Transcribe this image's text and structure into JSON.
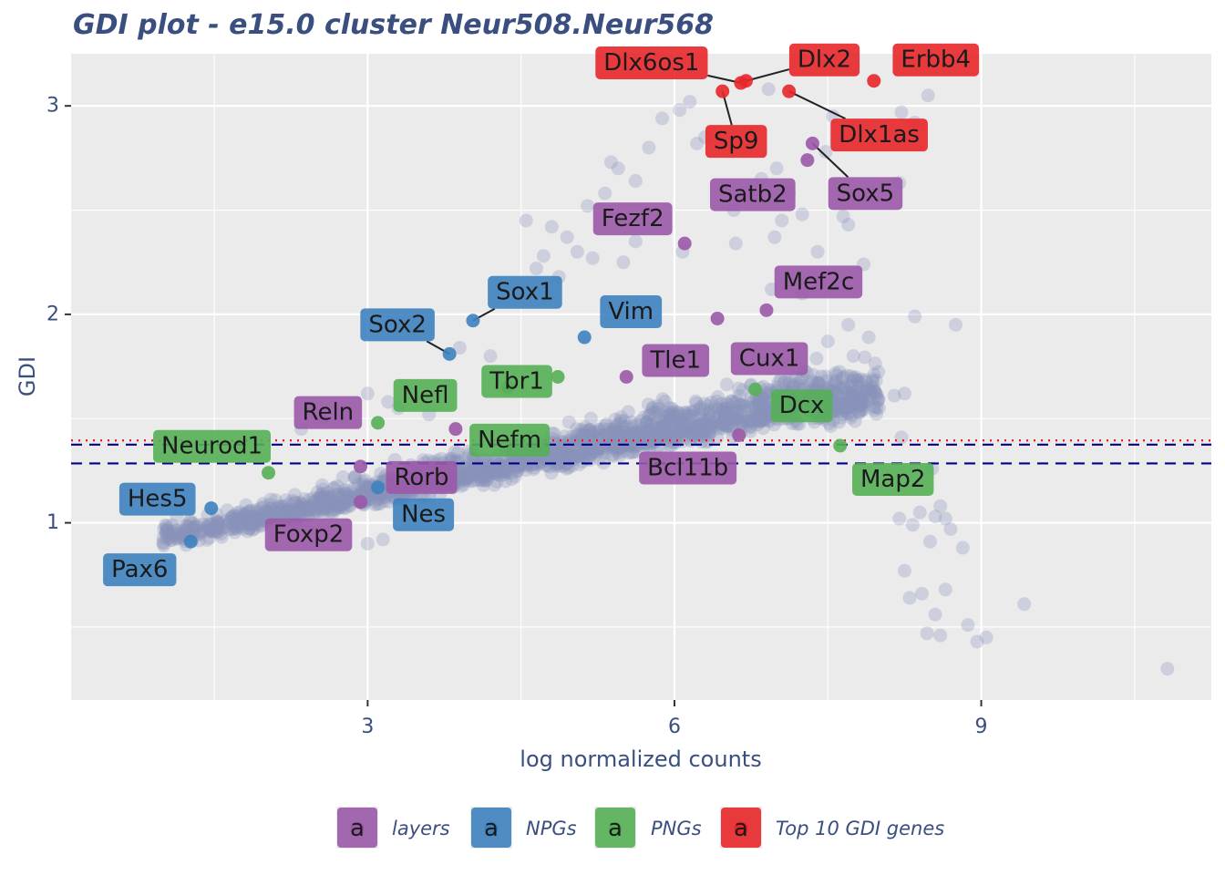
{
  "chart_data": {
    "type": "scatter",
    "title": "GDI plot - e15.0 cluster Neur508.Neur568",
    "xlabel": "log normalized counts",
    "ylabel": "GDI",
    "xlim": [
      0.1,
      11.25
    ],
    "ylim": [
      0.15,
      3.25
    ],
    "x_ticks": [
      3,
      6,
      9
    ],
    "y_ticks": [
      1,
      2,
      3
    ],
    "x_tick_labels": [
      "3",
      "6",
      "9"
    ],
    "y_tick_labels": [
      "1",
      "2",
      "3"
    ],
    "grid": true,
    "reference_lines": [
      {
        "y": 1.395,
        "style": "dotted",
        "color": "#e8151d"
      },
      {
        "y": 1.375,
        "style": "dashed",
        "color": "#00008b"
      },
      {
        "y": 1.285,
        "style": "dashed",
        "color": "#00008b"
      }
    ],
    "background_points_color": "#8793b8",
    "background_points_description": "dense cloud of all genes rising from about GDI 0.9 at x 1 to about 1.6 at x 7, with sparse outliers up to GDI 3.1 and a tail falling to 0.3 beyond x 8",
    "legend": {
      "position": "bottom",
      "key_glyph": "a",
      "entries": [
        {
          "name": "layers",
          "color": "#9b59a8"
        },
        {
          "name": "NPGs",
          "color": "#3e82bf"
        },
        {
          "name": "PNGs",
          "color": "#55b056"
        },
        {
          "name": "Top 10 GDI genes",
          "color": "#e8262a"
        }
      ]
    },
    "highlighted_genes": [
      {
        "gene": "Dlx6os1",
        "x": 6.65,
        "y": 3.11,
        "group": "Top 10 GDI genes"
      },
      {
        "gene": "Dlx2",
        "x": 6.7,
        "y": 3.12,
        "group": "Top 10 GDI genes"
      },
      {
        "gene": "Erbb4",
        "x": 7.95,
        "y": 3.12,
        "group": "Top 10 GDI genes"
      },
      {
        "gene": "Sp9",
        "x": 6.47,
        "y": 3.07,
        "group": "Top 10 GDI genes"
      },
      {
        "gene": "Dlx1as",
        "x": 7.12,
        "y": 3.07,
        "group": "Top 10 GDI genes"
      },
      {
        "gene": "Satb2",
        "x": 7.3,
        "y": 2.74,
        "group": "layers"
      },
      {
        "gene": "Sox5",
        "x": 7.35,
        "y": 2.82,
        "group": "layers"
      },
      {
        "gene": "Fezf2",
        "x": 6.1,
        "y": 2.34,
        "group": "layers"
      },
      {
        "gene": "Mef2c",
        "x": 6.9,
        "y": 2.02,
        "group": "layers"
      },
      {
        "gene": "Cux1",
        "x": 6.42,
        "y": 1.98,
        "group": "layers"
      },
      {
        "gene": "Tle1",
        "x": 5.53,
        "y": 1.7,
        "group": "layers"
      },
      {
        "gene": "Bcl11b",
        "x": 6.63,
        "y": 1.42,
        "group": "layers"
      },
      {
        "gene": "Reln",
        "x": 3.86,
        "y": 1.45,
        "group": "layers"
      },
      {
        "gene": "Rorb",
        "x": 2.93,
        "y": 1.27,
        "group": "layers"
      },
      {
        "gene": "Foxp2",
        "x": 2.93,
        "y": 1.1,
        "group": "layers"
      },
      {
        "gene": "Sox1",
        "x": 4.03,
        "y": 1.97,
        "group": "NPGs"
      },
      {
        "gene": "Sox2",
        "x": 3.8,
        "y": 1.81,
        "group": "NPGs"
      },
      {
        "gene": "Vim",
        "x": 5.12,
        "y": 1.89,
        "group": "NPGs"
      },
      {
        "gene": "Nes",
        "x": 3.1,
        "y": 1.17,
        "group": "NPGs"
      },
      {
        "gene": "Hes5",
        "x": 1.47,
        "y": 1.07,
        "group": "NPGs"
      },
      {
        "gene": "Pax6",
        "x": 1.27,
        "y": 0.91,
        "group": "NPGs"
      },
      {
        "gene": "Tbr1",
        "x": 4.86,
        "y": 1.7,
        "group": "PNGs"
      },
      {
        "gene": "Nefl",
        "x": 3.1,
        "y": 1.48,
        "group": "PNGs"
      },
      {
        "gene": "Nefm",
        "x": 4.37,
        "y": 1.65,
        "group": "PNGs"
      },
      {
        "gene": "Dcx",
        "x": 6.79,
        "y": 1.64,
        "group": "PNGs"
      },
      {
        "gene": "Neurod1",
        "x": 2.03,
        "y": 1.24,
        "group": "PNGs"
      },
      {
        "gene": "Map2",
        "x": 7.62,
        "y": 1.37,
        "group": "PNGs"
      }
    ],
    "sparse_outliers": [
      [
        6.05,
        2.98
      ],
      [
        6.15,
        3.02
      ],
      [
        5.88,
        2.94
      ],
      [
        6.3,
        2.85
      ],
      [
        6.92,
        3.08
      ],
      [
        7.55,
        2.95
      ],
      [
        8.22,
        2.97
      ],
      [
        8.48,
        3.05
      ],
      [
        8.35,
        2.92
      ],
      [
        7.48,
        2.78
      ],
      [
        6.22,
        2.82
      ],
      [
        5.75,
        2.8
      ],
      [
        5.45,
        2.7
      ],
      [
        5.38,
        2.73
      ],
      [
        5.62,
        2.64
      ],
      [
        5.15,
        2.52
      ],
      [
        5.32,
        2.58
      ],
      [
        6.85,
        2.65
      ],
      [
        7.0,
        2.7
      ],
      [
        7.12,
        2.58
      ],
      [
        8.2,
        2.63
      ],
      [
        7.65,
        2.47
      ],
      [
        7.7,
        2.43
      ],
      [
        6.58,
        2.5
      ],
      [
        7.25,
        2.48
      ],
      [
        4.55,
        2.45
      ],
      [
        4.8,
        2.42
      ],
      [
        4.95,
        2.37
      ],
      [
        5.05,
        2.3
      ],
      [
        4.72,
        2.28
      ],
      [
        4.65,
        2.22
      ],
      [
        4.87,
        2.18
      ],
      [
        5.2,
        2.27
      ],
      [
        5.5,
        2.25
      ],
      [
        5.62,
        2.35
      ],
      [
        6.08,
        2.3
      ],
      [
        6.6,
        2.34
      ],
      [
        6.98,
        2.37
      ],
      [
        7.05,
        2.45
      ],
      [
        7.4,
        2.3
      ],
      [
        7.85,
        2.24
      ],
      [
        6.95,
        2.12
      ],
      [
        7.25,
        2.1
      ],
      [
        8.35,
        1.99
      ],
      [
        8.75,
        1.95
      ],
      [
        7.7,
        1.95
      ],
      [
        7.9,
        1.89
      ],
      [
        7.5,
        1.87
      ],
      [
        7.75,
        1.8
      ],
      [
        8.15,
        1.61
      ],
      [
        8.25,
        1.62
      ],
      [
        8.0,
        1.55
      ],
      [
        8.22,
        1.41
      ],
      [
        8.52,
        1.26
      ],
      [
        8.6,
        1.08
      ],
      [
        8.4,
        1.05
      ],
      [
        8.55,
        1.03
      ],
      [
        8.65,
        1.02
      ],
      [
        8.7,
        0.97
      ],
      [
        8.82,
        0.88
      ],
      [
        8.5,
        0.91
      ],
      [
        8.33,
        0.99
      ],
      [
        8.2,
        1.02
      ],
      [
        8.25,
        0.77
      ],
      [
        8.42,
        0.66
      ],
      [
        8.65,
        0.68
      ],
      [
        8.55,
        0.56
      ],
      [
        8.47,
        0.47
      ],
      [
        8.6,
        0.46
      ],
      [
        8.87,
        0.51
      ],
      [
        8.96,
        0.43
      ],
      [
        9.05,
        0.45
      ],
      [
        8.3,
        0.64
      ],
      [
        9.42,
        0.61
      ],
      [
        10.82,
        0.3
      ],
      [
        3.0,
        1.62
      ],
      [
        3.2,
        1.58
      ],
      [
        2.55,
        1.5
      ],
      [
        2.77,
        1.51
      ],
      [
        2.35,
        1.45
      ],
      [
        3.3,
        1.55
      ],
      [
        3.6,
        1.52
      ],
      [
        3.9,
        1.84
      ],
      [
        4.2,
        1.8
      ],
      [
        3.0,
        0.9
      ],
      [
        3.15,
        0.92
      ],
      [
        2.9,
        1.12
      ]
    ]
  }
}
